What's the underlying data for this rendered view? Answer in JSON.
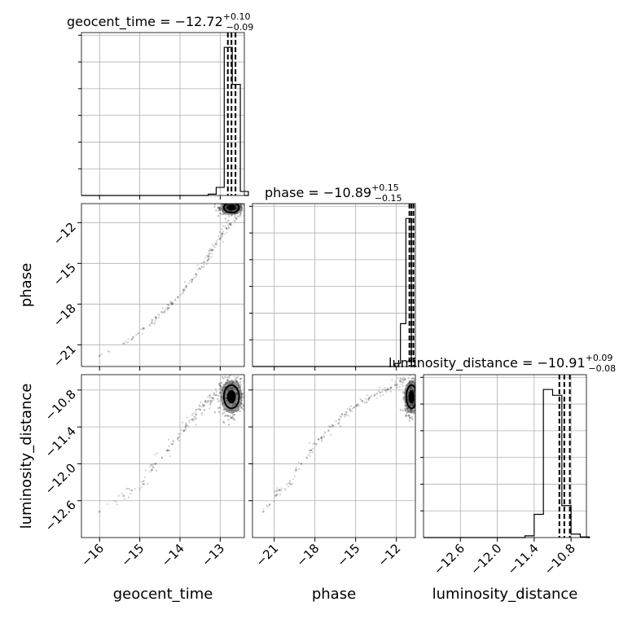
{
  "chart_data": {
    "type": "corner",
    "parameters": [
      "geocent_time",
      "phase",
      "luminosity_distance"
    ],
    "ranges": {
      "geocent_time": [
        -16.45,
        -12.4
      ],
      "phase": [
        -22.6,
        -10.6
      ],
      "luminosity_distance": [
        -13.2,
        -10.55
      ]
    },
    "ticks": {
      "geocent_time": [
        -16,
        -15,
        -14,
        -13
      ],
      "phase": [
        -21,
        -18,
        -15,
        -12
      ],
      "luminosity_distance": [
        -12.6,
        -12.0,
        -11.4,
        -10.8
      ]
    },
    "tick_labels": {
      "geocent_time": [
        "−16",
        "−15",
        "−14",
        "−13"
      ],
      "phase": [
        "−21",
        "−18",
        "−15",
        "−12"
      ],
      "luminosity_distance": [
        "−12.6",
        "−12.0",
        "−11.4",
        "−10.8"
      ]
    },
    "x_axis_labels": [
      "geocent_time",
      "phase",
      "luminosity_distance"
    ],
    "y_axis_labels": [
      "phase",
      "luminosity_distance"
    ],
    "titles": [
      {
        "text": "geocent_time = −12.72",
        "sup": "+0.10",
        "sub": "−0.09"
      },
      {
        "text": "phase = −10.89",
        "sup": "+0.15",
        "sub": "−0.15"
      },
      {
        "text": "luminosity_distance = −10.91",
        "sup": "+0.09",
        "sub": "−0.08"
      }
    ],
    "quantiles": {
      "geocent_time": [
        -12.81,
        -12.72,
        -12.62
      ],
      "phase": [
        -11.04,
        -10.89,
        -10.74
      ],
      "luminosity_distance": [
        -10.99,
        -10.91,
        -10.82
      ]
    },
    "histograms": [
      {
        "param": "geocent_time",
        "bin_start": -13.3,
        "bin_width": 0.2,
        "counts": [
          2,
          12,
          220,
          165,
          6
        ]
      },
      {
        "param": "phase",
        "bin_start": -12.1,
        "bin_width": 0.4,
        "counts": [
          4,
          55,
          190,
          0
        ]
      },
      {
        "param": "luminosity_distance",
        "bin_start": -11.55,
        "bin_width": 0.15,
        "counts": [
          3,
          40,
          255,
          245,
          55,
          6,
          1
        ]
      }
    ],
    "scatter_tail": [
      {
        "t": -16.0,
        "p": -21.8,
        "d": -12.78
      },
      {
        "t": -15.4,
        "p": -20.9,
        "d": -12.52
      },
      {
        "t": -15.2,
        "p": -20.6,
        "d": -12.43
      },
      {
        "t": -14.9,
        "p": -19.8,
        "d": -12.33
      },
      {
        "t": -14.7,
        "p": -19.4,
        "d": -12.1
      },
      {
        "t": -14.6,
        "p": -19.0,
        "d": -12.0
      },
      {
        "t": -14.45,
        "p": -18.6,
        "d": -11.9
      },
      {
        "t": -14.3,
        "p": -18.3,
        "d": -11.78
      },
      {
        "t": -14.2,
        "p": -17.9,
        "d": -11.68
      },
      {
        "t": -14.05,
        "p": -17.5,
        "d": -11.58
      },
      {
        "t": -13.9,
        "p": -17.0,
        "d": -11.46
      },
      {
        "t": -13.85,
        "p": -16.7,
        "d": -11.38
      },
      {
        "t": -13.7,
        "p": -16.2,
        "d": -11.28
      },
      {
        "t": -13.6,
        "p": -15.8,
        "d": -11.2
      },
      {
        "t": -13.5,
        "p": -15.4,
        "d": -11.12
      },
      {
        "t": -13.4,
        "p": -14.9,
        "d": -11.05
      },
      {
        "t": -13.3,
        "p": -14.5,
        "d": -10.98
      },
      {
        "t": -13.2,
        "p": -14.0,
        "d": -10.93
      },
      {
        "t": -13.1,
        "p": -13.6,
        "d": -10.88
      },
      {
        "t": -13.0,
        "p": -13.2,
        "d": -10.84
      },
      {
        "t": -12.95,
        "p": -12.8,
        "d": -10.8
      },
      {
        "t": -12.85,
        "p": -12.4,
        "d": -10.76
      },
      {
        "t": -12.75,
        "p": -12.1,
        "d": -10.72
      },
      {
        "t": -12.6,
        "p": -11.7,
        "d": -10.66
      },
      {
        "t": -12.5,
        "p": -11.4,
        "d": -10.62
      }
    ],
    "contour_core": {
      "geocent_time": {
        "center": -12.72,
        "sd": 0.09
      },
      "phase": {
        "center": -10.89,
        "sd": 0.15
      },
      "luminosity_distance": {
        "center": -10.91,
        "sd": 0.09
      }
    },
    "grid": true
  }
}
